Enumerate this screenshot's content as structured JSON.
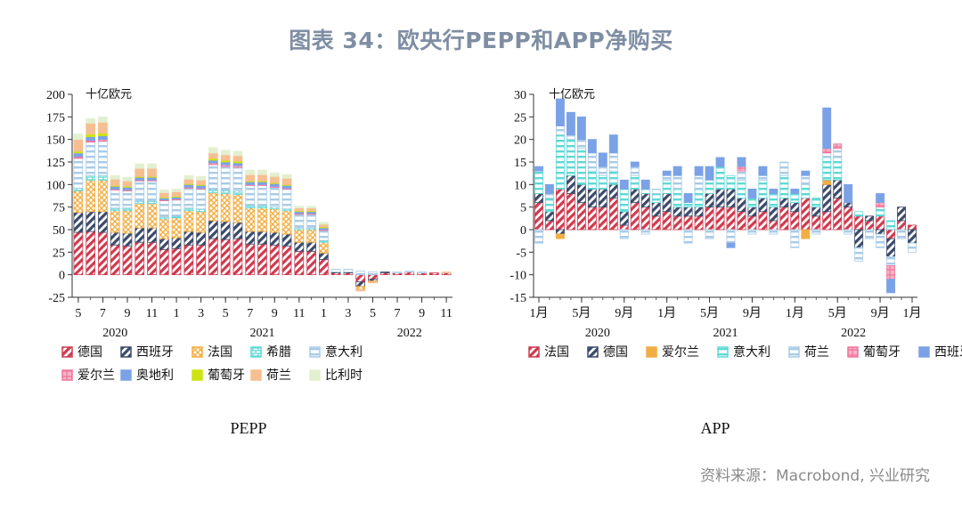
{
  "title": "图表 34：欧央行PEPP和APP净购买",
  "source": "资料来源：Macrobond, 兴业研究",
  "colors": {
    "德国": "#cf3a4f",
    "西班牙_pepp": "#3b4a69",
    "法国_pepp": "#f2ae45",
    "希腊": "#5fd8d6",
    "意大利": "#a9cbe6",
    "爱尔兰": "#f0759a",
    "奥地利": "#7ba2e6",
    "葡萄牙_pepp": "#cde314",
    "荷兰_pepp": "#f6bf91",
    "比利时": "#e3f0d0",
    "法国": "#cf3a4f",
    "德国_app": "#3b4a69",
    "爱尔兰_app": "#f2ae45",
    "意大利_app": "#5fd8d6",
    "荷兰": "#a9cbe6",
    "葡萄牙": "#f0759a",
    "西班牙": "#7ba2e6"
  },
  "chart_data": [
    {
      "type": "bar",
      "stacked": true,
      "caption": "PEPP",
      "unit": "十亿欧元",
      "ylim": [
        -25,
        200
      ],
      "yticks": [
        -25,
        0,
        25,
        50,
        75,
        100,
        125,
        150,
        175,
        200
      ],
      "x_tick_labels": [
        "5",
        "7",
        "9",
        "11",
        "1",
        "3",
        "5",
        "7",
        "9",
        "11",
        "1",
        "3",
        "5",
        "7",
        "9",
        "11"
      ],
      "year_labels": [
        "2020",
        "2021",
        "2022"
      ],
      "categories": [
        "2020-05",
        "2020-06",
        "2020-07",
        "2020-08",
        "2020-09",
        "2020-10",
        "2020-11",
        "2020-12",
        "2021-01",
        "2021-02",
        "2021-03",
        "2021-04",
        "2021-05",
        "2021-06",
        "2021-07",
        "2021-08",
        "2021-09",
        "2021-10",
        "2021-11",
        "2021-12",
        "2022-01",
        "2022-02",
        "2022-03",
        "2022-04",
        "2022-05",
        "2022-06",
        "2022-07",
        "2022-08",
        "2022-09",
        "2022-10",
        "2022-11"
      ],
      "legend": [
        "德国",
        "西班牙",
        "法国",
        "希腊",
        "意大利",
        "爱尔兰",
        "奥地利",
        "葡萄牙",
        "荷兰",
        "比利时"
      ],
      "series": [
        {
          "name": "德国",
          "key": "德国",
          "pattern": "hatch",
          "values": [
            47,
            48,
            47,
            33,
            32,
            36,
            36,
            28,
            29,
            33,
            33,
            40,
            39,
            40,
            34,
            34,
            33,
            32,
            26,
            26,
            17,
            2,
            2,
            -8,
            -5,
            2,
            2,
            3,
            2,
            2,
            2
          ]
        },
        {
          "name": "西班牙",
          "key": "西班牙_pepp",
          "pattern": "hatch",
          "values": [
            22,
            22,
            23,
            14,
            14,
            16,
            16,
            12,
            12,
            15,
            14,
            20,
            20,
            18,
            14,
            14,
            14,
            13,
            10,
            10,
            7,
            1,
            1,
            -5,
            -2,
            1,
            0,
            0,
            0,
            0,
            0
          ]
        },
        {
          "name": "法国",
          "key": "法国_pepp",
          "pattern": "cross",
          "values": [
            24,
            35,
            35,
            24,
            25,
            27,
            27,
            22,
            22,
            23,
            23,
            31,
            31,
            31,
            26,
            26,
            26,
            26,
            14,
            14,
            12,
            0,
            0,
            -3,
            -1,
            0,
            0,
            0,
            0,
            0,
            0
          ]
        },
        {
          "name": "希腊",
          "key": "希腊",
          "pattern": "brick",
          "values": [
            3,
            5,
            5,
            3,
            3,
            3,
            3,
            2,
            2,
            3,
            3,
            4,
            4,
            4,
            3,
            3,
            2,
            2,
            2,
            2,
            2,
            0,
            0,
            0,
            0,
            0,
            0,
            0,
            0,
            0,
            0
          ]
        },
        {
          "name": "意大利",
          "key": "意大利",
          "pattern": "horiz",
          "values": [
            33,
            37,
            38,
            20,
            19,
            22,
            22,
            18,
            18,
            22,
            22,
            27,
            26,
            26,
            22,
            22,
            22,
            22,
            15,
            15,
            11,
            3,
            3,
            4,
            3,
            0,
            1,
            1,
            1,
            0,
            0
          ]
        },
        {
          "name": "爱尔兰",
          "key": "爱尔兰",
          "pattern": "grid",
          "values": [
            2,
            2,
            2,
            1,
            1,
            1,
            1,
            1,
            1,
            1,
            1,
            2,
            2,
            2,
            1,
            1,
            1,
            1,
            1,
            1,
            1,
            0,
            0,
            0,
            0,
            0,
            0,
            0,
            0,
            0,
            0
          ]
        },
        {
          "name": "奥地利",
          "key": "奥地利",
          "pattern": "solid",
          "values": [
            4,
            4,
            4,
            3,
            3,
            3,
            3,
            2,
            2,
            3,
            3,
            3,
            3,
            3,
            3,
            3,
            3,
            3,
            2,
            2,
            2,
            0,
            0,
            0,
            0,
            0,
            0,
            0,
            0,
            0,
            0
          ]
        },
        {
          "name": "葡萄牙",
          "key": "葡萄牙_pepp",
          "pattern": "solid",
          "values": [
            2,
            3,
            3,
            1,
            1,
            1,
            1,
            1,
            1,
            1,
            1,
            2,
            2,
            2,
            1,
            1,
            1,
            1,
            1,
            1,
            1,
            0,
            0,
            0,
            0,
            0,
            0,
            0,
            0,
            0,
            0
          ]
        },
        {
          "name": "荷兰",
          "key": "荷兰_pepp",
          "pattern": "solid",
          "values": [
            13,
            12,
            12,
            7,
            6,
            9,
            9,
            5,
            5,
            5,
            5,
            6,
            6,
            6,
            7,
            7,
            7,
            7,
            3,
            3,
            3,
            0,
            0,
            -2,
            -1,
            0,
            0,
            0,
            0,
            0,
            1
          ]
        },
        {
          "name": "比利时",
          "key": "比利时",
          "pattern": "solid",
          "values": [
            6,
            5,
            6,
            4,
            4,
            5,
            5,
            3,
            3,
            4,
            4,
            6,
            5,
            5,
            5,
            5,
            4,
            4,
            2,
            2,
            2,
            0,
            0,
            0,
            0,
            0,
            0,
            0,
            0,
            0,
            0
          ]
        }
      ]
    },
    {
      "type": "bar",
      "stacked": true,
      "caption": "APP",
      "unit": "十亿欧元",
      "ylim": [
        -15,
        30
      ],
      "yticks": [
        -15,
        -10,
        -5,
        0,
        5,
        10,
        15,
        20,
        25,
        30
      ],
      "x_tick_labels": [
        "1月",
        "5月",
        "9月",
        "1月",
        "5月",
        "9月",
        "1月",
        "5月",
        "9月",
        "1月"
      ],
      "year_labels": [
        "2020",
        "2021",
        "2022"
      ],
      "categories": [
        "2020-01",
        "2020-02",
        "2020-03",
        "2020-04",
        "2020-05",
        "2020-06",
        "2020-07",
        "2020-08",
        "2020-09",
        "2020-10",
        "2020-11",
        "2020-12",
        "2021-01",
        "2021-02",
        "2021-03",
        "2021-04",
        "2021-05",
        "2021-06",
        "2021-07",
        "2021-08",
        "2021-09",
        "2021-10",
        "2021-11",
        "2021-12",
        "2022-01",
        "2022-02",
        "2022-03",
        "2022-04",
        "2022-05",
        "2022-06",
        "2022-07",
        "2022-08",
        "2022-09",
        "2022-10",
        "2022-11",
        "2022-12"
      ],
      "legend": [
        "法国",
        "德国",
        "爱尔兰",
        "意大利",
        "荷兰",
        "葡萄牙",
        "西班牙"
      ],
      "series": [
        {
          "name": "法国",
          "key": "法国",
          "pattern": "hatch",
          "values": [
            6,
            2,
            9,
            8,
            6,
            5,
            5,
            7,
            1,
            6,
            5,
            3,
            4,
            3,
            3,
            3,
            5,
            5,
            5,
            4,
            3,
            4,
            2,
            5,
            4,
            7,
            3,
            4,
            7,
            5,
            3,
            2,
            3,
            -2,
            2,
            1
          ]
        },
        {
          "name": "德国",
          "key": "德国_app",
          "pattern": "hatch",
          "values": [
            2,
            2,
            -1,
            4,
            4,
            4,
            4,
            3,
            3,
            3,
            3,
            3,
            4,
            2,
            2,
            2,
            3,
            4,
            4,
            3,
            2,
            3,
            3,
            2,
            2,
            0,
            2,
            6,
            4,
            1,
            -4,
            1,
            -1,
            -4,
            3,
            -3
          ]
        },
        {
          "name": "爱尔兰",
          "key": "爱尔兰_app",
          "pattern": "solid",
          "values": [
            0,
            0,
            -1,
            0,
            0,
            0,
            0,
            0,
            0,
            0,
            0,
            0,
            0,
            0,
            0,
            0,
            0,
            0,
            0,
            0,
            0,
            0,
            0,
            0,
            0,
            -2,
            0,
            1,
            0,
            0,
            0,
            0,
            0,
            0,
            0,
            0
          ]
        },
        {
          "name": "意大利",
          "key": "意大利_app",
          "pattern": "horiz",
          "values": [
            5,
            3,
            12,
            8,
            8,
            4,
            3,
            3,
            5,
            3,
            1,
            2,
            3,
            4,
            1,
            4,
            3,
            5,
            3,
            4,
            2,
            4,
            3,
            5,
            2,
            3,
            2,
            5,
            5,
            0,
            1,
            0,
            2,
            2,
            0,
            0
          ]
        },
        {
          "name": "荷兰",
          "key": "荷兰",
          "pattern": "horiz",
          "values": [
            -3,
            1,
            2,
            1,
            2,
            4,
            2,
            4,
            -2,
            2,
            -1,
            1,
            1,
            3,
            -3,
            3,
            -2,
            0,
            -3,
            2,
            -1,
            1,
            -1,
            3,
            -4,
            2,
            -1,
            1,
            2,
            -1,
            -3,
            -2,
            -3,
            -2,
            -2,
            -2
          ]
        },
        {
          "name": "葡萄牙",
          "key": "葡萄牙",
          "pattern": "grid",
          "values": [
            0,
            0,
            0,
            0,
            0,
            0,
            0,
            0,
            0,
            0,
            0,
            0,
            0,
            0,
            0,
            0,
            0,
            0,
            0,
            1,
            0,
            0,
            0,
            0,
            0,
            0,
            0,
            1,
            1,
            0,
            0,
            0,
            1,
            -3,
            0,
            0
          ]
        },
        {
          "name": "西班牙",
          "key": "西班牙",
          "pattern": "solid",
          "values": [
            1,
            2,
            6,
            5,
            5,
            3,
            3,
            4,
            2,
            1,
            2,
            0,
            1,
            2,
            2,
            2,
            3,
            2,
            -1,
            2,
            2,
            2,
            1,
            0,
            1,
            1,
            0,
            9,
            0,
            4,
            0,
            0,
            2,
            -3,
            0,
            0
          ]
        }
      ]
    }
  ]
}
